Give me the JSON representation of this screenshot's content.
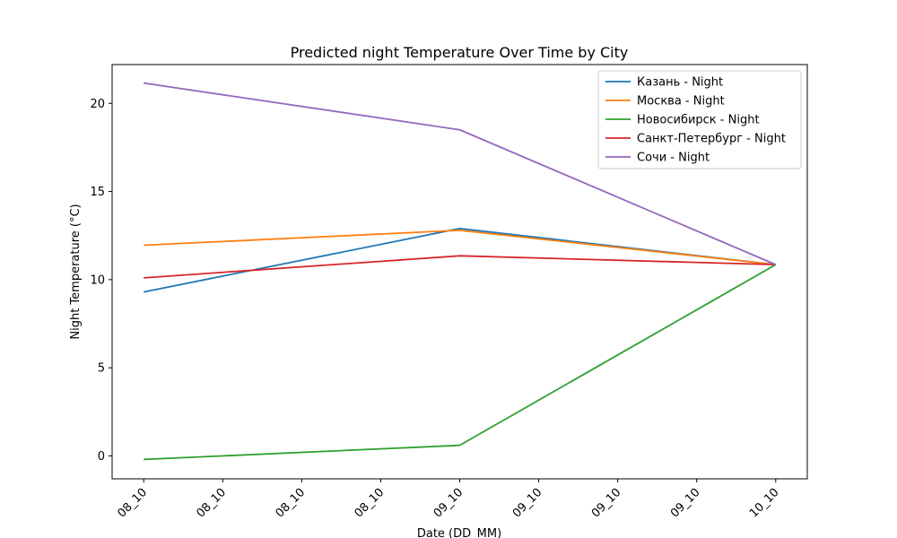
{
  "chart_data": {
    "type": "line",
    "title": "Predicted night Temperature Over Time by City",
    "xlabel": "Date (DD_MM)",
    "ylabel": "Night Temperature (°C)",
    "x_tick_labels": [
      "08_10",
      "08_10",
      "08_10",
      "08_10",
      "09_10",
      "09_10",
      "09_10",
      "09_10",
      "10_10"
    ],
    "x": [
      "08_10",
      "09_10",
      "10_10"
    ],
    "x_tick_positions": [
      0,
      0.25,
      0.5,
      0.75,
      1,
      1.25,
      1.5,
      1.75,
      2
    ],
    "y_ticks": [
      0,
      5,
      10,
      15,
      20
    ],
    "ylim": [
      -1.3,
      22.2
    ],
    "xlim": [
      -0.1,
      2.1
    ],
    "grid": false,
    "legend_placement": "top-right",
    "series": [
      {
        "name": "Казань - Night",
        "color": "#1f77b4",
        "values": [
          9.3,
          12.9,
          10.85
        ]
      },
      {
        "name": "Москва - Night",
        "color": "#ff7f0e",
        "values": [
          11.95,
          12.8,
          10.85
        ]
      },
      {
        "name": "Новосибирск - Night",
        "color": "#2ca02c",
        "values": [
          -0.2,
          0.6,
          10.85
        ]
      },
      {
        "name": "Санкт-Петербург - Night",
        "color": "#d62728",
        "values": [
          10.1,
          11.35,
          10.85
        ]
      },
      {
        "name": "Сочи - Night",
        "color": "#9467bd",
        "values": [
          21.15,
          18.5,
          10.85
        ]
      }
    ]
  }
}
